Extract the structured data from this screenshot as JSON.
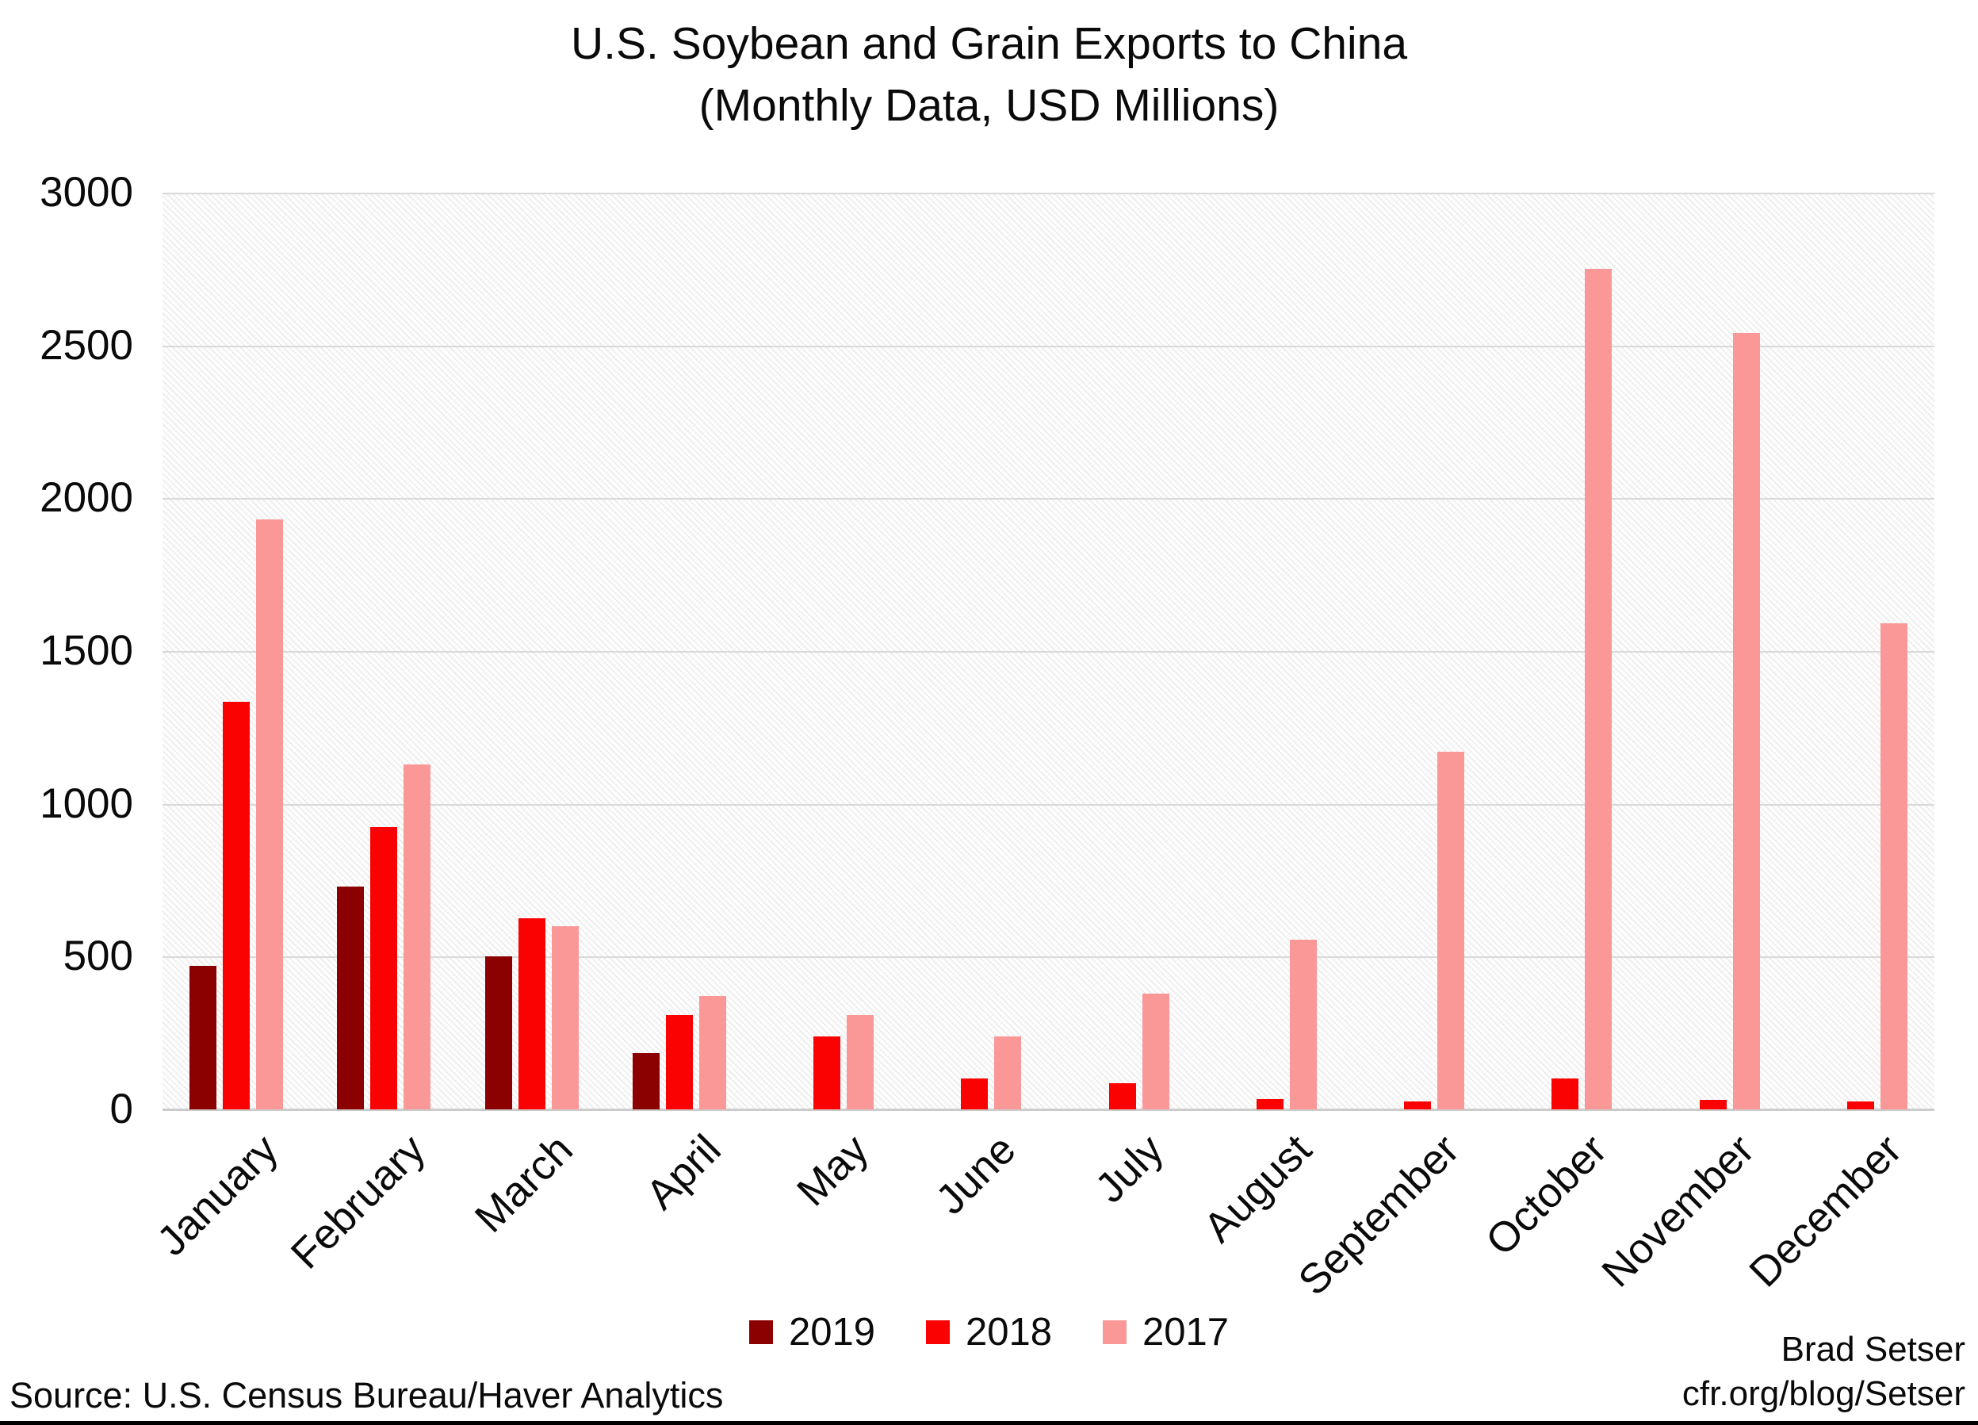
{
  "title": {
    "line1": "U.S. Soybean and Grain Exports to China",
    "line2": "(Monthly Data, USD Millions)"
  },
  "footer": {
    "source": "Source: U.S. Census Bureau/Haver Analytics",
    "credit_line1": "Brad Setser",
    "credit_line2": "cfr.org/blog/Setser"
  },
  "colors": {
    "series_2019": "#8B0000",
    "series_2018": "#FA0202",
    "series_2017": "#FA9898",
    "gridline": "#d9d9d9",
    "axis_line": "#cccccc",
    "text": "#0a0a0a"
  },
  "legend": {
    "position": "bottom-center",
    "items": [
      {
        "label": "2019",
        "color": "#8B0000"
      },
      {
        "label": "2018",
        "color": "#FA0202"
      },
      {
        "label": "2017",
        "color": "#FA9898"
      }
    ]
  },
  "chart_data": {
    "type": "bar",
    "title": "U.S. Soybean and Grain Exports to China",
    "subtitle": "(Monthly Data, USD Millions)",
    "categories": [
      "January",
      "February",
      "March",
      "April",
      "May",
      "June",
      "July",
      "August",
      "September",
      "October",
      "November",
      "December"
    ],
    "series": [
      {
        "name": "2019",
        "color": "#8B0000",
        "values": [
          470,
          730,
          500,
          185,
          null,
          null,
          null,
          null,
          null,
          null,
          null,
          null
        ]
      },
      {
        "name": "2018",
        "color": "#FA0202",
        "values": [
          1335,
          925,
          625,
          310,
          240,
          100,
          85,
          35,
          25,
          100,
          30,
          25
        ]
      },
      {
        "name": "2017",
        "color": "#FA9898",
        "values": [
          1930,
          1130,
          600,
          370,
          310,
          240,
          380,
          555,
          1170,
          2750,
          2540,
          1590
        ]
      }
    ],
    "xlabel": "",
    "ylabel": "",
    "ylim": [
      0,
      3000
    ],
    "yticks": [
      0,
      500,
      1000,
      1500,
      2000,
      2500,
      3000
    ],
    "grid": true,
    "plot_background": "diagonal-hatch",
    "legend_position": "bottom"
  }
}
